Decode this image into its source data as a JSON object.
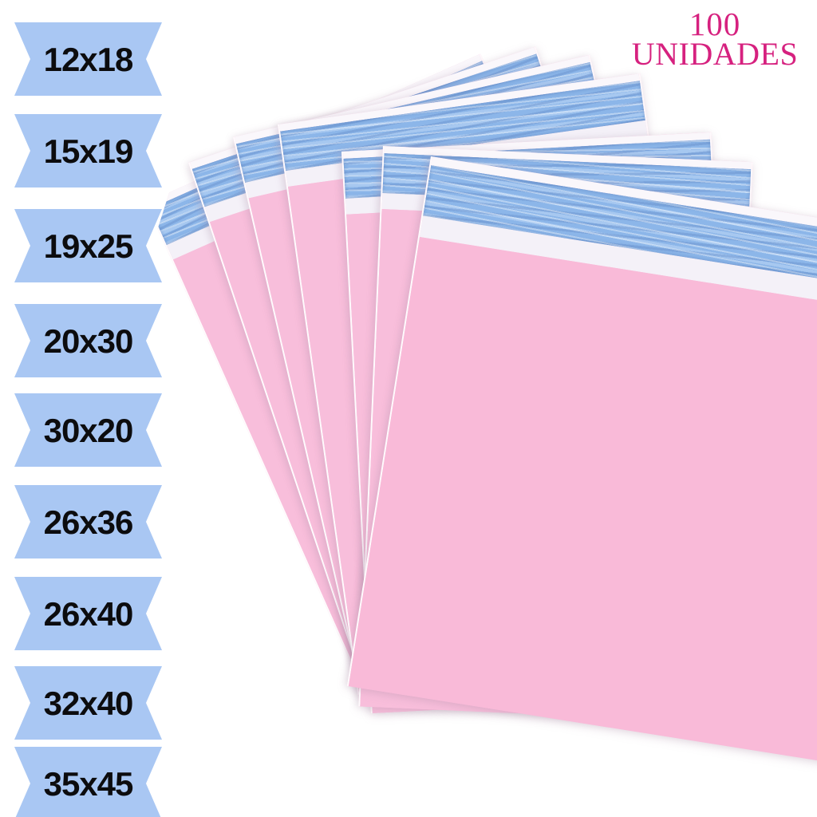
{
  "page": {
    "background": "#FFFFFF",
    "subject": "fan of pink poly mailer shipping envelopes with blue adhesive security strips"
  },
  "quantity_badge": {
    "number": "100",
    "label": "UNIDADES",
    "text_color": "#D6217F"
  },
  "size_ribbons": {
    "ribbon_color": "#A9C7F3",
    "text_color": "#0C0C0E",
    "sizes": [
      "12x18",
      "15x19",
      "19x25",
      "20x30",
      "30x20",
      "26x36",
      "26x40",
      "32x40",
      "35x45"
    ]
  },
  "envelopes": {
    "count": 7,
    "body_color": "#F8BEDB",
    "front_body_color": "#F9BAD8",
    "adhesive_strip_color": "#8CB6E9",
    "liner_color": "#F4F1F8",
    "edge_color": "#FFFFFF"
  }
}
